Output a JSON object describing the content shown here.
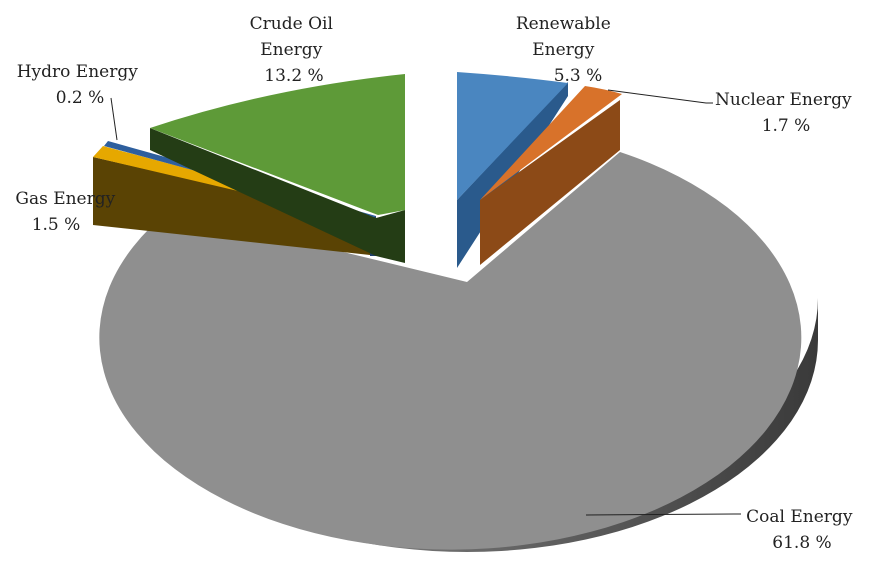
{
  "chart_data": {
    "type": "pie",
    "style": "3d-exploded",
    "legend": "none",
    "slices": [
      {
        "name": "Coal Energy",
        "value": 61.8,
        "label": "61.8 %",
        "color": "#8c8c8c"
      },
      {
        "name": "Gas Energy",
        "value": 1.5,
        "label": "1.5 %",
        "color": "#e6a800"
      },
      {
        "name": "Hydro Energy",
        "value": 0.2,
        "label": "0.2 %",
        "color": "#2e5f9e"
      },
      {
        "name": "Crude Oil Energy",
        "value": 13.2,
        "label": "13.2 %",
        "color": "#5e9a38"
      },
      {
        "name": "Renewable Energy",
        "value": 5.3,
        "label": "5.3 %",
        "color": "#4a86c0"
      },
      {
        "name": "Nuclear Energy",
        "value": 1.7,
        "label": "1.7 %",
        "color": "#d8722a"
      }
    ],
    "labels": {
      "crude_oil": [
        "Crude Oil",
        "Energy",
        "13.2 %"
      ],
      "renewable": [
        "Renewable",
        "Energy",
        "5.3 %"
      ],
      "hydro": [
        "Hydro Energy",
        "0.2 %"
      ],
      "nuclear": [
        "Nuclear Energy",
        "1.7 %"
      ],
      "gas": [
        "Gas Energy",
        "1.5 %"
      ],
      "coal": [
        "Coal Energy",
        "61.8 %"
      ]
    }
  }
}
